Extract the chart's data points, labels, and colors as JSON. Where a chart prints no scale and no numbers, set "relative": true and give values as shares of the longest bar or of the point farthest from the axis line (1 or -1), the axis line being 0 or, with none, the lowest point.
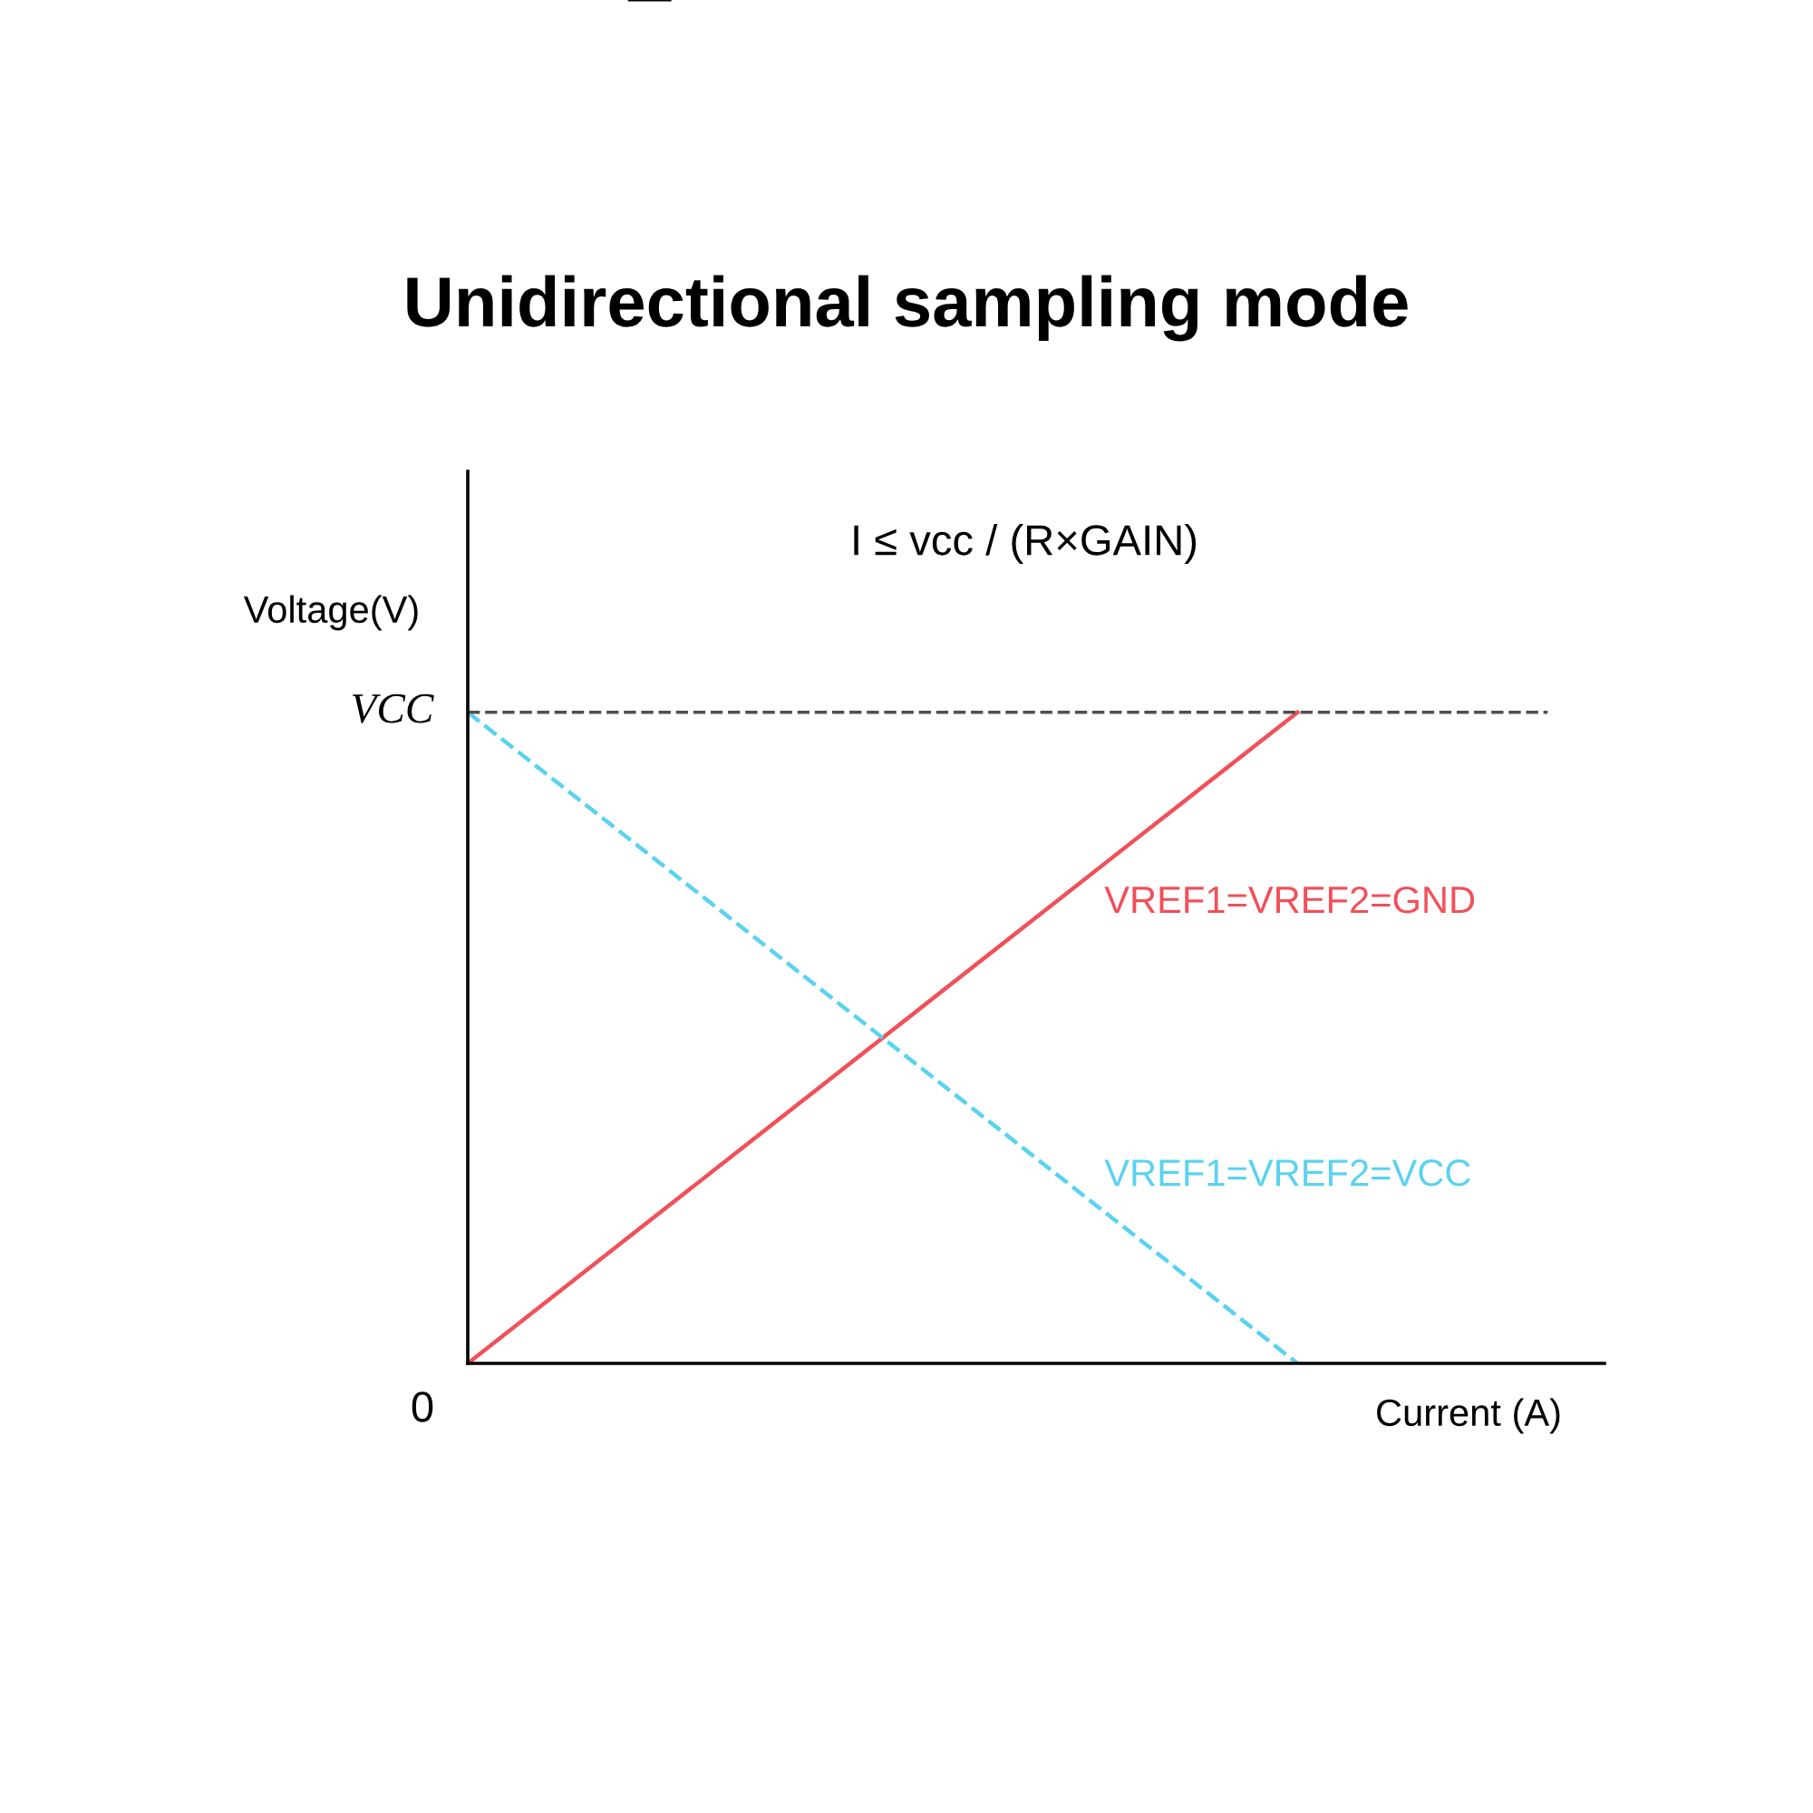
{
  "chart_data": {
    "type": "line",
    "title": "Unidirectional sampling mode",
    "xlabel": "Current (A)",
    "ylabel": "Voltage(V)",
    "categories": [
      null,
      null
    ],
    "series": [
      {
        "name": "VREF1=VREF2=GND",
        "color": "#f0505a",
        "values": [
          0,
          1
        ],
        "line_style": "solid"
      },
      {
        "name": "VREF1=VREF2=VCC",
        "color": "#5ad2f0",
        "values": [
          1,
          0
        ],
        "line_style": "dashed"
      }
    ],
    "relative": true,
    "ref_lines": [
      {
        "axis": "y",
        "value": 1,
        "label": "VCC",
        "color": "#505050",
        "line_style": "dashed"
      }
    ],
    "annotations": [
      "I ≤ vcc / (R×GAIN)",
      "0"
    ],
    "legend": false,
    "marker": "none"
  }
}
